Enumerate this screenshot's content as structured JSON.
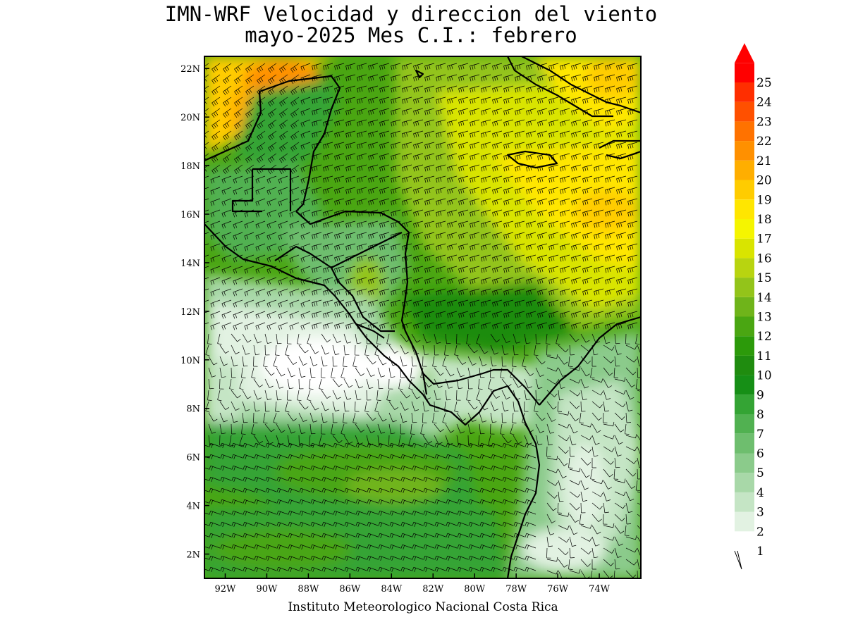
{
  "title_line1": "IMN-WRF Velocidad y direccion del viento",
  "title_line2": "mayo-2025 Mes C.I.: febrero",
  "credit": "Instituto Meteorologico Nacional Costa Rica",
  "map": {
    "lon_range": [
      -93.0,
      -72.0
    ],
    "lat_range": [
      1.0,
      22.5
    ],
    "lon_ticks": [
      {
        "value": -92,
        "label": "92W"
      },
      {
        "value": -90,
        "label": "90W"
      },
      {
        "value": -88,
        "label": "88W"
      },
      {
        "value": -86,
        "label": "86W"
      },
      {
        "value": -84,
        "label": "84W"
      },
      {
        "value": -82,
        "label": "82W"
      },
      {
        "value": -80,
        "label": "80W"
      },
      {
        "value": -78,
        "label": "78W"
      },
      {
        "value": -76,
        "label": "76W"
      },
      {
        "value": -74,
        "label": "74W"
      }
    ],
    "lat_ticks": [
      {
        "value": 2,
        "label": "2N"
      },
      {
        "value": 4,
        "label": "4N"
      },
      {
        "value": 6,
        "label": "6N"
      },
      {
        "value": 8,
        "label": "8N"
      },
      {
        "value": 10,
        "label": "10N"
      },
      {
        "value": 12,
        "label": "12N"
      },
      {
        "value": 14,
        "label": "14N"
      },
      {
        "value": 16,
        "label": "16N"
      },
      {
        "value": 18,
        "label": "18N"
      },
      {
        "value": 20,
        "label": "20N"
      },
      {
        "value": 22,
        "label": "22N"
      }
    ]
  },
  "colorbar": {
    "levels": [
      "1",
      "2",
      "3",
      "4",
      "5",
      "6",
      "7",
      "8",
      "9",
      "10",
      "11",
      "12",
      "13",
      "14",
      "15",
      "16",
      "17",
      "18",
      "19",
      "20",
      "21",
      "22",
      "23",
      "24",
      "25"
    ],
    "colors": [
      "#ffffff",
      "#e2f2e2",
      "#c5e5c5",
      "#a8d8a8",
      "#8bcb8b",
      "#6ebe6e",
      "#51b151",
      "#34a434",
      "#168f16",
      "#1f8c0f",
      "#2c9a0a",
      "#4aa612",
      "#6fb41a",
      "#93c41a",
      "#b8d410",
      "#d9e400",
      "#f5f500",
      "#ffe600",
      "#ffcc00",
      "#ffae00",
      "#ff9000",
      "#ff7200",
      "#ff5000",
      "#ff2e00",
      "#ff0000"
    ],
    "over_color": "#ff0000"
  }
}
